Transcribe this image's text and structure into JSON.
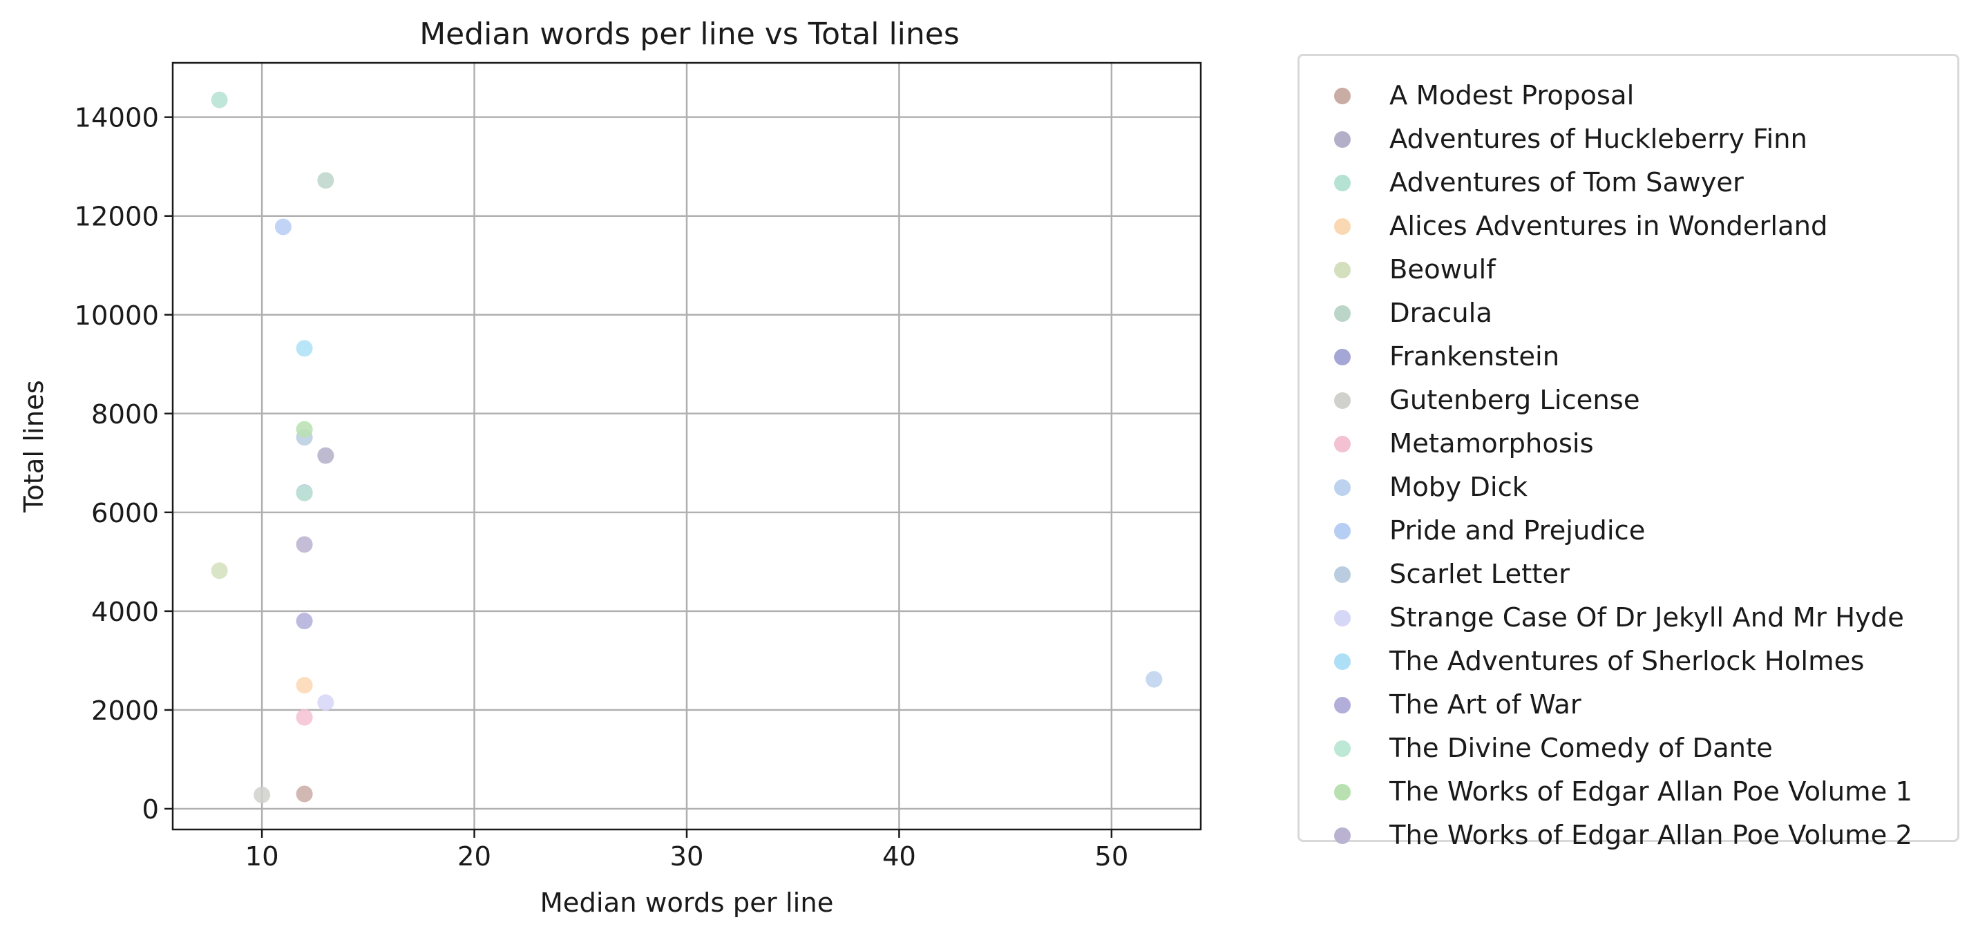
{
  "chart_data": {
    "type": "scatter",
    "title": "Median words per line vs Total lines",
    "xlabel": "Median words per line",
    "ylabel": "Total lines",
    "xlim": [
      5.8,
      54.2
    ],
    "ylim": [
      -420,
      15100
    ],
    "xticks": [
      10,
      20,
      30,
      40,
      50
    ],
    "yticks": [
      0,
      2000,
      4000,
      6000,
      8000,
      10000,
      12000,
      14000
    ],
    "grid": true,
    "legend_position": "outside-right",
    "series": [
      {
        "name": "A Modest Proposal",
        "color": "#c9aca4",
        "points": [
          [
            12,
            300
          ]
        ]
      },
      {
        "name": "Adventures of Huckleberry Finn",
        "color": "#b3afc9",
        "points": [
          [
            13,
            7150
          ]
        ]
      },
      {
        "name": "Adventures of Tom Sawyer",
        "color": "#b5e2d3",
        "points": [
          [
            8,
            14350
          ]
        ]
      },
      {
        "name": "Alices Adventures in Wonderland",
        "color": "#fbd8b4",
        "points": [
          [
            12,
            2500
          ]
        ]
      },
      {
        "name": "Beowulf",
        "color": "#d3dfbd",
        "points": [
          [
            8,
            4820
          ]
        ]
      },
      {
        "name": "Dracula",
        "color": "#bcd5c9",
        "points": [
          [
            13,
            12720
          ]
        ]
      },
      {
        "name": "Frankenstein",
        "color": "#a4a6d6",
        "points": [
          [
            12,
            6400
          ]
        ]
      },
      {
        "name": "Gutenberg License",
        "color": "#d0d0cc",
        "points": [
          [
            10,
            280
          ]
        ]
      },
      {
        "name": "Metamorphosis",
        "color": "#f4c1d2",
        "points": [
          [
            12,
            1850
          ]
        ]
      },
      {
        "name": "Moby Dick",
        "color": "#bcd2ee",
        "points": [
          [
            52,
            2620
          ]
        ]
      },
      {
        "name": "Pride and Prejudice",
        "color": "#b6cdf4",
        "points": [
          [
            11,
            11780
          ]
        ]
      },
      {
        "name": "Scarlet Letter",
        "color": "#b9cce0",
        "points": [
          [
            12,
            7520
          ]
        ]
      },
      {
        "name": "Strange Case Of Dr Jekyll And Mr Hyde",
        "color": "#d6d6f7",
        "points": [
          [
            13,
            2150
          ]
        ]
      },
      {
        "name": "The Adventures of Sherlock Holmes",
        "color": "#ade0f7",
        "points": [
          [
            12,
            9320
          ]
        ]
      },
      {
        "name": "The Art of War",
        "color": "#b2aed9",
        "points": [
          [
            12,
            3800
          ]
        ]
      },
      {
        "name": "The Divine Comedy of Dante",
        "color": "#bde8d5",
        "points": [
          [
            12,
            6390
          ]
        ]
      },
      {
        "name": "The Works of Edgar Allan Poe Volume 1",
        "color": "#b8e0b1",
        "points": [
          [
            12,
            7680
          ]
        ]
      },
      {
        "name": "The Works of Edgar Allan Poe Volume 2",
        "color": "#bab2d1",
        "points": [
          [
            12,
            5350
          ]
        ]
      }
    ]
  }
}
